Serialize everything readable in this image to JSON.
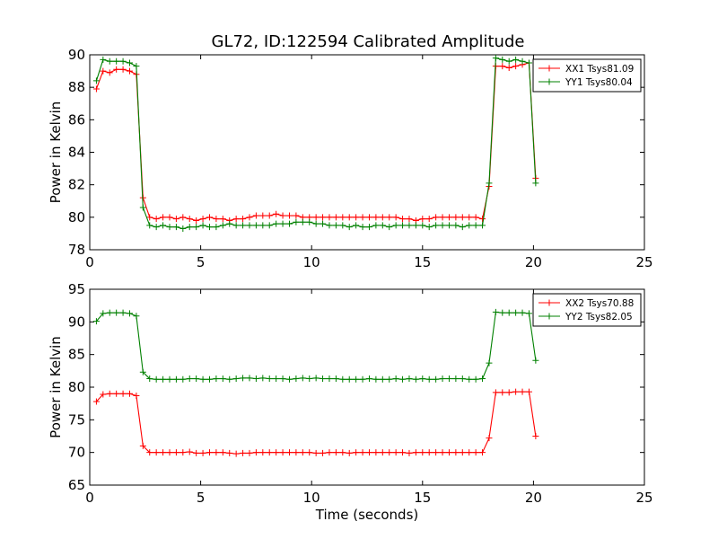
{
  "figure_title": "GL72, ID:122594 Calibrated Amplitude",
  "chart_data": [
    {
      "type": "line",
      "title": "GL72, ID:122594 Calibrated Amplitude",
      "xlabel": "",
      "ylabel": "Power in Kelvin",
      "xlim": [
        0,
        25
      ],
      "ylim": [
        78,
        90
      ],
      "xticks": [
        0,
        5,
        10,
        15,
        20,
        25
      ],
      "yticks": [
        78,
        80,
        82,
        84,
        86,
        88,
        90
      ],
      "legend_position": "top-right",
      "grid": false,
      "x": [
        0.3,
        0.6,
        0.9,
        1.2,
        1.5,
        1.8,
        2.1,
        2.4,
        2.7,
        3.0,
        3.3,
        3.6,
        3.9,
        4.2,
        4.5,
        4.8,
        5.1,
        5.4,
        5.7,
        6.0,
        6.3,
        6.6,
        6.9,
        7.2,
        7.5,
        7.8,
        8.1,
        8.4,
        8.7,
        9.0,
        9.3,
        9.6,
        9.9,
        10.2,
        10.5,
        10.8,
        11.1,
        11.4,
        11.7,
        12.0,
        12.3,
        12.6,
        12.9,
        13.2,
        13.5,
        13.8,
        14.1,
        14.4,
        14.7,
        15.0,
        15.3,
        15.6,
        15.9,
        16.2,
        16.5,
        16.8,
        17.1,
        17.4,
        17.7,
        18.0,
        18.3,
        18.6,
        18.9,
        19.2,
        19.5,
        19.8,
        20.1
      ],
      "series": [
        {
          "name": "XX1 Tsys81.09",
          "color": "#ff0000",
          "values": [
            87.9,
            89.0,
            88.9,
            89.1,
            89.1,
            89.0,
            88.8,
            81.2,
            80.0,
            79.9,
            80.0,
            80.0,
            79.9,
            80.0,
            79.9,
            79.8,
            79.9,
            80.0,
            79.9,
            79.9,
            79.8,
            79.9,
            79.9,
            80.0,
            80.1,
            80.1,
            80.1,
            80.2,
            80.1,
            80.1,
            80.1,
            80.0,
            80.0,
            80.0,
            80.0,
            80.0,
            80.0,
            80.0,
            80.0,
            80.0,
            80.0,
            80.0,
            80.0,
            80.0,
            80.0,
            80.0,
            79.9,
            79.9,
            79.8,
            79.9,
            79.9,
            80.0,
            80.0,
            80.0,
            80.0,
            80.0,
            80.0,
            80.0,
            79.9,
            81.9,
            89.3,
            89.3,
            89.2,
            89.3,
            89.4,
            89.5,
            82.4
          ]
        },
        {
          "name": "YY1 Tsys80.04",
          "color": "#008000",
          "values": [
            88.4,
            89.7,
            89.6,
            89.6,
            89.6,
            89.5,
            89.3,
            80.6,
            79.5,
            79.4,
            79.5,
            79.4,
            79.4,
            79.3,
            79.4,
            79.4,
            79.5,
            79.4,
            79.4,
            79.5,
            79.6,
            79.5,
            79.5,
            79.5,
            79.5,
            79.5,
            79.5,
            79.6,
            79.6,
            79.6,
            79.7,
            79.7,
            79.7,
            79.6,
            79.6,
            79.5,
            79.5,
            79.5,
            79.4,
            79.5,
            79.4,
            79.4,
            79.5,
            79.5,
            79.4,
            79.5,
            79.5,
            79.5,
            79.5,
            79.5,
            79.4,
            79.5,
            79.5,
            79.5,
            79.5,
            79.4,
            79.5,
            79.5,
            79.5,
            82.1,
            89.8,
            89.7,
            89.6,
            89.7,
            89.6,
            89.5,
            82.1
          ]
        }
      ]
    },
    {
      "type": "line",
      "title": "",
      "xlabel": "Time (seconds)",
      "ylabel": "Power in Kelvin",
      "xlim": [
        0,
        25
      ],
      "ylim": [
        65,
        95
      ],
      "xticks": [
        0,
        5,
        10,
        15,
        20,
        25
      ],
      "yticks": [
        65,
        70,
        75,
        80,
        85,
        90,
        95
      ],
      "legend_position": "top-right",
      "grid": false,
      "x": [
        0.3,
        0.6,
        0.9,
        1.2,
        1.5,
        1.8,
        2.1,
        2.4,
        2.7,
        3.0,
        3.3,
        3.6,
        3.9,
        4.2,
        4.5,
        4.8,
        5.1,
        5.4,
        5.7,
        6.0,
        6.3,
        6.6,
        6.9,
        7.2,
        7.5,
        7.8,
        8.1,
        8.4,
        8.7,
        9.0,
        9.3,
        9.6,
        9.9,
        10.2,
        10.5,
        10.8,
        11.1,
        11.4,
        11.7,
        12.0,
        12.3,
        12.6,
        12.9,
        13.2,
        13.5,
        13.8,
        14.1,
        14.4,
        14.7,
        15.0,
        15.3,
        15.6,
        15.9,
        16.2,
        16.5,
        16.8,
        17.1,
        17.4,
        17.7,
        18.0,
        18.3,
        18.6,
        18.9,
        19.2,
        19.5,
        19.8,
        20.1
      ],
      "series": [
        {
          "name": "XX2 Tsys70.88",
          "color": "#ff0000",
          "values": [
            77.8,
            78.9,
            79.0,
            79.0,
            79.0,
            79.0,
            78.7,
            71.0,
            70.0,
            70.0,
            70.0,
            70.0,
            70.0,
            70.0,
            70.1,
            69.9,
            69.9,
            70.0,
            70.0,
            70.0,
            69.9,
            69.8,
            69.9,
            69.9,
            70.0,
            70.0,
            70.0,
            70.0,
            70.0,
            70.0,
            70.0,
            70.0,
            70.0,
            69.9,
            69.9,
            70.0,
            70.0,
            70.0,
            69.9,
            70.0,
            70.0,
            70.0,
            70.0,
            70.0,
            70.0,
            70.0,
            70.0,
            69.9,
            70.0,
            70.0,
            70.0,
            70.0,
            70.0,
            70.0,
            70.0,
            70.0,
            70.0,
            70.0,
            70.0,
            72.2,
            79.2,
            79.2,
            79.2,
            79.3,
            79.3,
            79.3,
            72.5
          ]
        },
        {
          "name": "YY2 Tsys82.05",
          "color": "#008000",
          "values": [
            90.1,
            91.3,
            91.4,
            91.4,
            91.4,
            91.3,
            90.9,
            82.3,
            81.3,
            81.2,
            81.2,
            81.2,
            81.2,
            81.2,
            81.3,
            81.3,
            81.2,
            81.2,
            81.3,
            81.3,
            81.2,
            81.3,
            81.4,
            81.4,
            81.3,
            81.4,
            81.3,
            81.3,
            81.3,
            81.2,
            81.3,
            81.4,
            81.3,
            81.4,
            81.3,
            81.3,
            81.3,
            81.2,
            81.2,
            81.2,
            81.2,
            81.3,
            81.2,
            81.2,
            81.2,
            81.3,
            81.2,
            81.3,
            81.2,
            81.3,
            81.2,
            81.2,
            81.3,
            81.3,
            81.3,
            81.3,
            81.2,
            81.2,
            81.3,
            83.7,
            91.5,
            91.4,
            91.4,
            91.4,
            91.4,
            91.3,
            84.1
          ]
        }
      ]
    }
  ]
}
